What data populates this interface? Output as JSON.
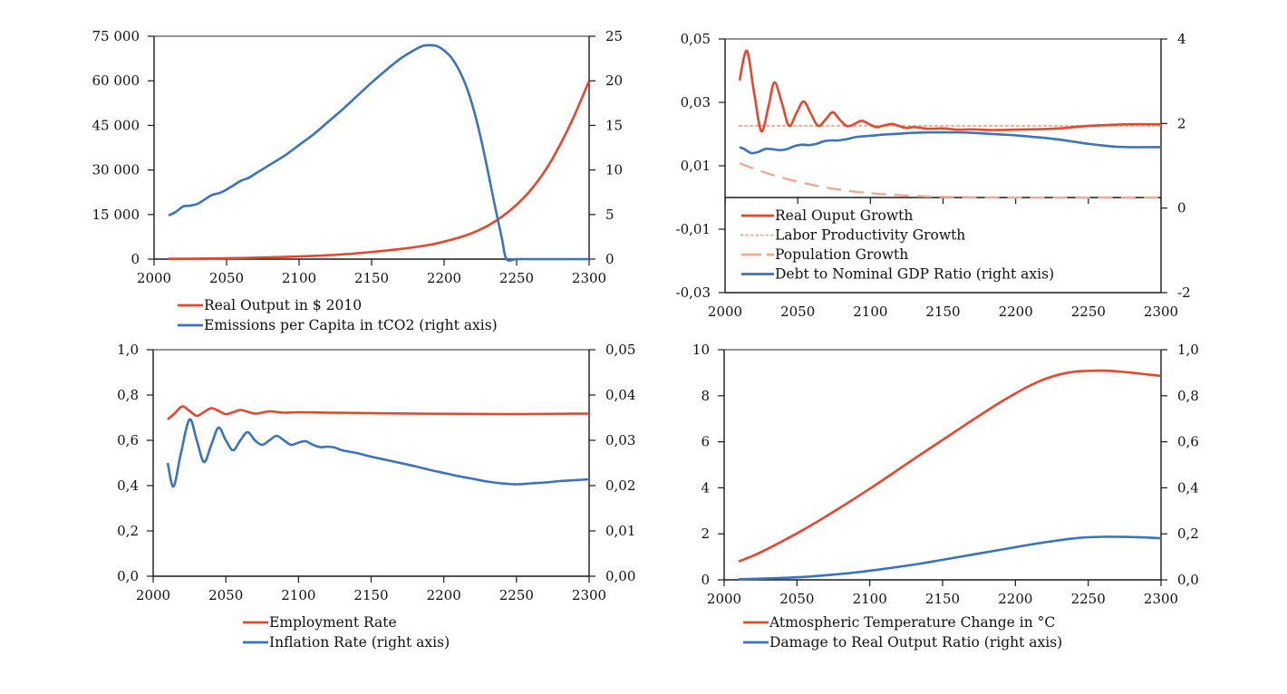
{
  "colors": {
    "red": "#E8462A",
    "blue": "#3A73C0",
    "salmon": "#F2A994",
    "axis": "#1a1a1a",
    "frame": "#555555"
  },
  "chart_data": [
    {
      "id": "output-emissions",
      "type": "line",
      "title": "",
      "x_ticks": [
        2000,
        2050,
        2100,
        2150,
        2200,
        2250,
        2300
      ],
      "x_tick_labels": [
        "2000",
        "2050",
        "2100",
        "2150",
        "2200",
        "2250",
        "2300"
      ],
      "xlim": [
        2000,
        2300
      ],
      "ylim_left": [
        0,
        75000
      ],
      "y_ticks_left": [
        0,
        15000,
        30000,
        45000,
        60000,
        75000
      ],
      "y_tick_labels_left": [
        "0",
        "15 000",
        "30 000",
        "45 000",
        "60 000",
        "75 000"
      ],
      "ylim_right": [
        0,
        25
      ],
      "y_ticks_right": [
        0,
        5,
        10,
        15,
        20,
        25
      ],
      "y_tick_labels_right": [
        "0",
        "5",
        "10",
        "15",
        "20",
        "25"
      ],
      "legend_position": "bottom",
      "grid": false,
      "series": [
        {
          "name": "Real Output in $ 2010",
          "axis": "left",
          "color_key": "red",
          "style": "solid",
          "x": [
            2010,
            2030,
            2050,
            2070,
            2090,
            2110,
            2130,
            2150,
            2170,
            2190,
            2200,
            2210,
            2220,
            2230,
            2240,
            2250,
            2260,
            2270,
            2280,
            2290,
            2300
          ],
          "values": [
            100,
            180,
            300,
            480,
            750,
            1100,
            1600,
            2400,
            3400,
            4800,
            5900,
            7200,
            8900,
            11200,
            14300,
            18300,
            23400,
            30000,
            38500,
            48500,
            60000
          ]
        },
        {
          "name": "Emissions per Capita in tCO2 (right axis)",
          "axis": "right",
          "color_key": "blue",
          "style": "solid",
          "x": [
            2010,
            2015,
            2020,
            2025,
            2030,
            2035,
            2040,
            2045,
            2050,
            2055,
            2060,
            2065,
            2070,
            2075,
            2080,
            2090,
            2100,
            2110,
            2120,
            2130,
            2140,
            2150,
            2160,
            2170,
            2180,
            2185,
            2190,
            2195,
            2200,
            2205,
            2210,
            2215,
            2220,
            2225,
            2230,
            2235,
            2240,
            2243,
            2250,
            2260,
            2270,
            2280,
            2290,
            2300
          ],
          "values": [
            4.9,
            5.3,
            5.9,
            6.0,
            6.2,
            6.7,
            7.2,
            7.4,
            7.8,
            8.3,
            8.8,
            9.1,
            9.6,
            10.1,
            10.6,
            11.6,
            12.8,
            14.0,
            15.4,
            16.8,
            18.3,
            19.8,
            21.2,
            22.5,
            23.5,
            23.9,
            24.0,
            23.9,
            23.4,
            22.6,
            21.3,
            19.5,
            17.0,
            13.8,
            10.0,
            6.0,
            2.2,
            0.0,
            0.0,
            0.0,
            0.0,
            0.0,
            0.0,
            0.0
          ]
        }
      ]
    },
    {
      "id": "growth-debt",
      "type": "line",
      "title": "",
      "x_ticks": [
        2000,
        2050,
        2100,
        2150,
        2200,
        2250,
        2300
      ],
      "x_tick_labels": [
        "2000",
        "2050",
        "2100",
        "2150",
        "2200",
        "2250",
        "2300"
      ],
      "xlim": [
        2000,
        2300
      ],
      "ylim_left": [
        -0.03,
        0.05
      ],
      "y_ticks_left": [
        -0.03,
        -0.01,
        0.01,
        0.03,
        0.05
      ],
      "y_tick_labels_left": [
        "-0,03",
        "-0,01",
        "0,01",
        "0,03",
        "0,05"
      ],
      "ylim_right": [
        -2,
        4
      ],
      "y_ticks_right": [
        -2,
        0,
        2,
        4
      ],
      "y_tick_labels_right": [
        "-2",
        "0",
        "2",
        "4"
      ],
      "x_axis_at_left_value": 0,
      "legend_position": "inside-bottom-left",
      "grid": false,
      "series": [
        {
          "name": "Real Ouput Growth",
          "axis": "left",
          "color_key": "red",
          "style": "solid",
          "x": [
            2010,
            2015,
            2020,
            2025,
            2030,
            2034,
            2039,
            2044,
            2049,
            2054,
            2059,
            2064,
            2069,
            2074,
            2079,
            2084,
            2089,
            2094,
            2099,
            2104,
            2110,
            2115,
            2120,
            2125,
            2130,
            2140,
            2150,
            2160,
            2170,
            2180,
            2190,
            2200,
            2210,
            2220,
            2230,
            2240,
            2250,
            2260,
            2270,
            2280,
            2290,
            2300
          ],
          "values": [
            0.0369,
            0.0463,
            0.033,
            0.0209,
            0.029,
            0.0363,
            0.03,
            0.0226,
            0.0265,
            0.0303,
            0.0265,
            0.0226,
            0.0245,
            0.0269,
            0.0245,
            0.0225,
            0.0232,
            0.0242,
            0.0232,
            0.0222,
            0.0228,
            0.0232,
            0.0225,
            0.0219,
            0.0222,
            0.0217,
            0.0218,
            0.0214,
            0.0215,
            0.0213,
            0.0213,
            0.0214,
            0.0215,
            0.0216,
            0.0218,
            0.0222,
            0.0226,
            0.0228,
            0.023,
            0.0231,
            0.0231,
            0.0231
          ]
        },
        {
          "name": "Labor Productivity Growth",
          "axis": "left",
          "color_key": "salmon",
          "style": "dotted",
          "x": [
            2010,
            2300
          ],
          "values": [
            0.0226,
            0.0226
          ]
        },
        {
          "name": "Population Growth",
          "axis": "left",
          "color_key": "salmon",
          "style": "dashed",
          "x": [
            2010,
            2030,
            2050,
            2070,
            2090,
            2110,
            2130,
            2150,
            2170,
            2200,
            2250,
            2300
          ],
          "values": [
            0.0108,
            0.0075,
            0.005,
            0.0031,
            0.0018,
            0.001,
            0.0005,
            0.0002,
            0.0001,
            0.0,
            0.0,
            0.0
          ]
        },
        {
          "name": "Debt to Nominal GDP Ratio (right axis)",
          "axis": "right",
          "color_key": "blue",
          "style": "solid",
          "x": [
            2010,
            2013,
            2018,
            2023,
            2028,
            2033,
            2038,
            2043,
            2048,
            2053,
            2058,
            2063,
            2068,
            2073,
            2078,
            2085,
            2090,
            2100,
            2110,
            2120,
            2130,
            2140,
            2150,
            2160,
            2170,
            2180,
            2190,
            2200,
            2210,
            2220,
            2230,
            2240,
            2250,
            2260,
            2270,
            2280,
            2290,
            2300
          ],
          "values": [
            1.44,
            1.4,
            1.3,
            1.33,
            1.4,
            1.39,
            1.37,
            1.4,
            1.47,
            1.5,
            1.49,
            1.52,
            1.58,
            1.6,
            1.6,
            1.64,
            1.68,
            1.71,
            1.74,
            1.76,
            1.78,
            1.79,
            1.79,
            1.79,
            1.78,
            1.76,
            1.74,
            1.72,
            1.69,
            1.66,
            1.62,
            1.57,
            1.52,
            1.48,
            1.45,
            1.44,
            1.44,
            1.44
          ]
        }
      ]
    },
    {
      "id": "employment-inflation",
      "type": "line",
      "title": "",
      "x_ticks": [
        2000,
        2050,
        2100,
        2150,
        2200,
        2250,
        2300
      ],
      "x_tick_labels": [
        "2000",
        "2050",
        "2100",
        "2150",
        "2200",
        "2250",
        "2300"
      ],
      "xlim": [
        2000,
        2300
      ],
      "ylim_left": [
        0,
        1
      ],
      "y_ticks_left": [
        0,
        0.2,
        0.4,
        0.6,
        0.8,
        1.0
      ],
      "y_tick_labels_left": [
        "0,0",
        "0,2",
        "0,4",
        "0,6",
        "0,8",
        "1,0"
      ],
      "ylim_right": [
        0,
        0.05
      ],
      "y_ticks_right": [
        0,
        0.01,
        0.02,
        0.03,
        0.04,
        0.05
      ],
      "y_tick_labels_right": [
        "0,00",
        "0,01",
        "0,02",
        "0,03",
        "0,04",
        "0,05"
      ],
      "legend_position": "bottom",
      "grid": false,
      "series": [
        {
          "name": "Employment Rate",
          "axis": "left",
          "color_key": "red",
          "style": "solid",
          "x": [
            2010,
            2015,
            2020,
            2025,
            2030,
            2035,
            2040,
            2045,
            2050,
            2055,
            2060,
            2065,
            2070,
            2075,
            2080,
            2090,
            2100,
            2120,
            2150,
            2200,
            2250,
            2300
          ],
          "values": [
            0.692,
            0.72,
            0.75,
            0.73,
            0.708,
            0.725,
            0.742,
            0.73,
            0.716,
            0.724,
            0.734,
            0.726,
            0.718,
            0.722,
            0.728,
            0.722,
            0.724,
            0.722,
            0.72,
            0.717,
            0.716,
            0.718
          ]
        },
        {
          "name": "Inflation Rate (right axis)",
          "axis": "right",
          "color_key": "blue",
          "style": "solid",
          "x": [
            2010,
            2014,
            2019,
            2025,
            2030,
            2035,
            2040,
            2045,
            2050,
            2055,
            2060,
            2065,
            2070,
            2075,
            2080,
            2085,
            2090,
            2095,
            2100,
            2105,
            2110,
            2115,
            2120,
            2125,
            2130,
            2140,
            2150,
            2160,
            2170,
            2180,
            2190,
            2200,
            2210,
            2220,
            2230,
            2240,
            2250,
            2260,
            2270,
            2280,
            2290,
            2300
          ],
          "values": [
            0.025,
            0.0198,
            0.027,
            0.0346,
            0.03,
            0.0252,
            0.029,
            0.0328,
            0.03,
            0.0278,
            0.03,
            0.0318,
            0.03,
            0.029,
            0.03,
            0.031,
            0.03,
            0.029,
            0.0295,
            0.0298,
            0.029,
            0.0285,
            0.0286,
            0.0284,
            0.0278,
            0.0272,
            0.0264,
            0.0257,
            0.025,
            0.0243,
            0.0235,
            0.0228,
            0.0221,
            0.0215,
            0.0209,
            0.0205,
            0.0203,
            0.0205,
            0.0207,
            0.021,
            0.0212,
            0.0214
          ]
        }
      ]
    },
    {
      "id": "temperature-damage",
      "type": "line",
      "title": "",
      "x_ticks": [
        2000,
        2050,
        2100,
        2150,
        2200,
        2250,
        2300
      ],
      "x_tick_labels": [
        "2000",
        "2050",
        "2100",
        "2150",
        "2200",
        "2250",
        "2300"
      ],
      "xlim": [
        2000,
        2300
      ],
      "ylim_left": [
        0,
        10
      ],
      "y_ticks_left": [
        0,
        2,
        4,
        6,
        8,
        10
      ],
      "y_tick_labels_left": [
        "0",
        "2",
        "4",
        "6",
        "8",
        "10"
      ],
      "ylim_right": [
        0,
        1.0
      ],
      "y_ticks_right": [
        0,
        0.2,
        0.4,
        0.6,
        0.8,
        1.0
      ],
      "y_tick_labels_right": [
        "0,0",
        "0,2",
        "0,4",
        "0,6",
        "0,8",
        "1,0"
      ],
      "legend_position": "bottom",
      "grid": false,
      "series": [
        {
          "name": "Atmospheric Temperature Change in °C",
          "axis": "left",
          "color_key": "red",
          "style": "solid",
          "x": [
            2010,
            2020,
            2030,
            2040,
            2050,
            2060,
            2070,
            2080,
            2090,
            2100,
            2110,
            2120,
            2130,
            2140,
            2150,
            2160,
            2170,
            2180,
            2190,
            2200,
            2210,
            2220,
            2230,
            2240,
            2250,
            2260,
            2270,
            2280,
            2290,
            2300
          ],
          "values": [
            0.8,
            1.05,
            1.35,
            1.68,
            2.02,
            2.38,
            2.76,
            3.15,
            3.55,
            3.96,
            4.38,
            4.81,
            5.24,
            5.66,
            6.08,
            6.5,
            6.92,
            7.33,
            7.73,
            8.1,
            8.44,
            8.72,
            8.92,
            9.04,
            9.08,
            9.09,
            9.06,
            9.0,
            8.93,
            8.86
          ]
        },
        {
          "name": "Damage to Real Output Ratio  (right axis)",
          "axis": "right",
          "color_key": "blue",
          "style": "solid",
          "x": [
            2010,
            2030,
            2050,
            2070,
            2090,
            2110,
            2130,
            2150,
            2170,
            2190,
            2200,
            2210,
            2220,
            2230,
            2240,
            2250,
            2260,
            2270,
            2280,
            2290,
            2300
          ],
          "values": [
            0.003,
            0.006,
            0.011,
            0.02,
            0.032,
            0.048,
            0.066,
            0.087,
            0.109,
            0.131,
            0.142,
            0.153,
            0.163,
            0.172,
            0.18,
            0.185,
            0.187,
            0.187,
            0.186,
            0.184,
            0.181
          ]
        }
      ]
    }
  ]
}
